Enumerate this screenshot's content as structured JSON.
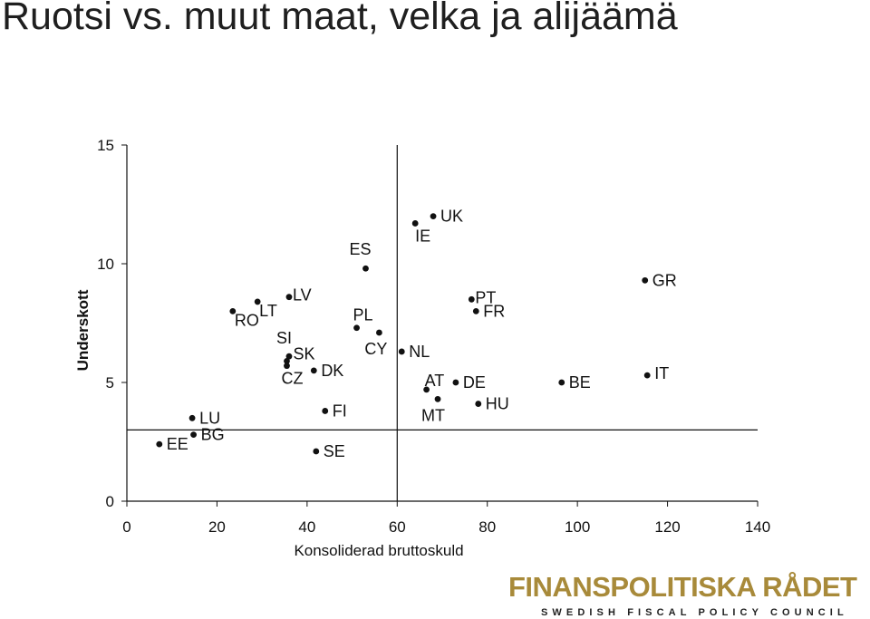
{
  "slide": {
    "title": "Ruotsi vs. muut maat, velka ja alijäämä"
  },
  "brand": {
    "name": "FINANSPOLITISKA RÅDET",
    "tagline": "SWEDISH FISCAL POLICY COUNCIL",
    "color": "#a88a3a"
  },
  "chart_data": {
    "type": "scatter",
    "title": "",
    "xlabel": "Konsoliderad bruttoskuld",
    "ylabel": "Underskott",
    "xlim": [
      0,
      140
    ],
    "ylim": [
      0,
      15
    ],
    "x_ticks": [
      0,
      20,
      40,
      60,
      80,
      100,
      120,
      140
    ],
    "y_ticks": [
      0,
      5,
      10,
      15
    ],
    "reference_lines": {
      "x": 60,
      "y": 3
    },
    "grid": false,
    "points": [
      {
        "label": "UK",
        "x": 68,
        "y": 12.0
      },
      {
        "label": "IE",
        "x": 64,
        "y": 11.7
      },
      {
        "label": "ES",
        "x": 53,
        "y": 9.8
      },
      {
        "label": "GR",
        "x": 115,
        "y": 9.3
      },
      {
        "label": "PT",
        "x": 76.5,
        "y": 8.5
      },
      {
        "label": "LV",
        "x": 36,
        "y": 8.6
      },
      {
        "label": "LT",
        "x": 29,
        "y": 8.4
      },
      {
        "label": "RO",
        "x": 23.5,
        "y": 8.0
      },
      {
        "label": "FR",
        "x": 77.5,
        "y": 8.0
      },
      {
        "label": "PL",
        "x": 51,
        "y": 7.3
      },
      {
        "label": "CY",
        "x": 56,
        "y": 7.1
      },
      {
        "label": "NL",
        "x": 61,
        "y": 6.3
      },
      {
        "label": "SI",
        "x": 36,
        "y": 6.1
      },
      {
        "label": "SK",
        "x": 35.5,
        "y": 5.9
      },
      {
        "label": "CZ",
        "x": 35.5,
        "y": 5.7
      },
      {
        "label": "DK",
        "x": 41.5,
        "y": 5.5
      },
      {
        "label": "IT",
        "x": 115.5,
        "y": 5.3
      },
      {
        "label": "DE",
        "x": 73,
        "y": 5.0
      },
      {
        "label": "BE",
        "x": 96.5,
        "y": 5.0
      },
      {
        "label": "AT",
        "x": 66.5,
        "y": 4.7
      },
      {
        "label": "MT",
        "x": 69,
        "y": 4.3
      },
      {
        "label": "HU",
        "x": 78,
        "y": 4.1
      },
      {
        "label": "FI",
        "x": 44,
        "y": 3.8
      },
      {
        "label": "LU",
        "x": 14.5,
        "y": 3.5
      },
      {
        "label": "BG",
        "x": 14.8,
        "y": 2.8
      },
      {
        "label": "EE",
        "x": 7.2,
        "y": 2.4
      },
      {
        "label": "SE",
        "x": 42,
        "y": 2.1
      }
    ]
  }
}
